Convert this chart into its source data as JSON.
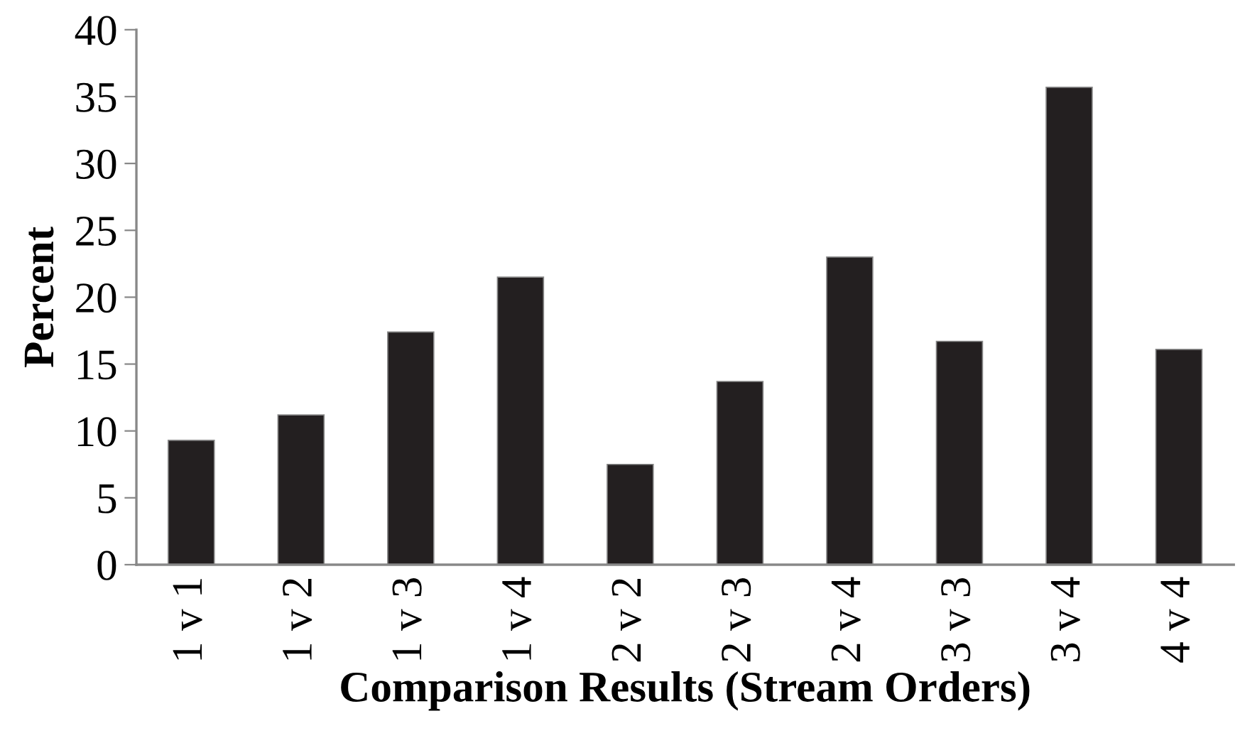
{
  "chart_data": {
    "type": "bar",
    "xlabel": "Comparison Results (Stream Orders)",
    "ylabel": "Percent",
    "categories": [
      "1 v 1",
      "1 v 2",
      "1 v 3",
      "1 v 4",
      "2 v 2",
      "2 v 3",
      "2 v 4",
      "3 v 3",
      "3 v 4",
      "4 v 4"
    ],
    "values": [
      9.3,
      11.2,
      17.4,
      21.5,
      7.5,
      13.7,
      23.0,
      16.7,
      35.7,
      16.1
    ],
    "color": "#231f20",
    "ylim": [
      0,
      40
    ],
    "yticks": [
      0,
      5,
      10,
      15,
      20,
      25,
      30,
      35,
      40
    ],
    "grid": false
  }
}
